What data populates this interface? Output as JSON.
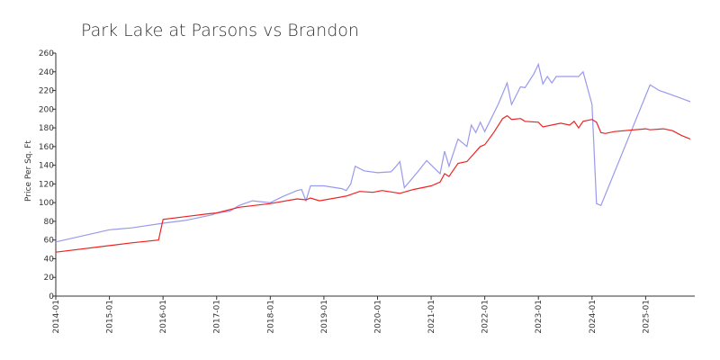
{
  "chart_data": {
    "type": "line",
    "title": "Park Lake at Parsons vs Brandon",
    "y_label": "Price Per Sq. Ft",
    "xlim": [
      "2014-01",
      "2025-12"
    ],
    "xticks": [
      "2014-01",
      "2015-01",
      "2016-01",
      "2017-01",
      "2018-01",
      "2019-01",
      "2020-01",
      "2021-01",
      "2022-01",
      "2023-01",
      "2024-01",
      "2025-01"
    ],
    "ylim": [
      0,
      260
    ],
    "yticks": [
      0,
      20,
      40,
      60,
      80,
      100,
      120,
      140,
      160,
      180,
      200,
      220,
      240,
      260
    ],
    "series": [
      {
        "color": "#9999ee",
        "x": [
          "2014-01",
          "2015-01",
          "2015-06",
          "2016-01",
          "2016-06",
          "2016-12",
          "2017-01",
          "2017-04",
          "2017-06",
          "2017-09",
          "2018-01",
          "2018-04",
          "2018-07",
          "2018-08",
          "2018-09",
          "2018-10",
          "2019-01",
          "2019-05",
          "2019-06",
          "2019-07",
          "2019-08",
          "2019-10",
          "2020-01",
          "2020-04",
          "2020-05",
          "2020-06",
          "2020-07",
          "2020-10",
          "2020-12",
          "2021-03",
          "2021-04",
          "2021-05",
          "2021-07",
          "2021-09",
          "2021-10",
          "2021-11",
          "2021-12",
          "2022-01",
          "2022-04",
          "2022-06",
          "2022-07",
          "2022-09",
          "2022-10",
          "2022-12",
          "2023-01",
          "2023-02",
          "2023-03",
          "2023-04",
          "2023-05",
          "2023-10",
          "2023-11",
          "2024-01",
          "2024-02",
          "2024-03",
          "2025-02",
          "2025-04",
          "2025-07",
          "2025-11"
        ],
        "values": [
          58,
          71,
          73,
          78,
          81,
          87,
          89,
          91,
          97,
          102,
          100,
          107,
          113,
          114,
          102,
          118,
          118,
          115,
          113,
          120,
          139,
          134,
          132,
          133,
          138,
          144,
          116,
          133,
          145,
          131,
          155,
          139,
          168,
          160,
          183,
          175,
          186,
          176,
          205,
          228,
          205,
          224,
          223,
          238,
          248,
          227,
          235,
          228,
          235,
          235,
          240,
          205,
          99,
          97,
          226,
          220,
          215,
          208
        ]
      },
      {
        "color": "#ee2222",
        "x": [
          "2014-01",
          "2015-01",
          "2015-06",
          "2015-12",
          "2016-01",
          "2016-06",
          "2016-11",
          "2017-01",
          "2017-06",
          "2018-01",
          "2018-07",
          "2018-09",
          "2018-10",
          "2018-12",
          "2019-06",
          "2019-09",
          "2019-12",
          "2020-02",
          "2020-06",
          "2020-09",
          "2021-01",
          "2021-03",
          "2021-04",
          "2021-05",
          "2021-07",
          "2021-09",
          "2021-12",
          "2022-01",
          "2022-03",
          "2022-05",
          "2022-06",
          "2022-07",
          "2022-09",
          "2022-10",
          "2023-01",
          "2023-02",
          "2023-06",
          "2023-08",
          "2023-09",
          "2023-10",
          "2023-11",
          "2024-01",
          "2024-02",
          "2024-03",
          "2024-04",
          "2024-06",
          "2025-01",
          "2025-02",
          "2025-05",
          "2025-07",
          "2025-09",
          "2025-11"
        ],
        "values": [
          47,
          54,
          57,
          60,
          82,
          85,
          88,
          89,
          95,
          99,
          104,
          103,
          105,
          102,
          107,
          112,
          111,
          113,
          110,
          114,
          118,
          122,
          131,
          128,
          142,
          144,
          160,
          162,
          175,
          190,
          193,
          189,
          190,
          187,
          186,
          181,
          185,
          183,
          187,
          180,
          187,
          189,
          186,
          175,
          174,
          176,
          179,
          178,
          179,
          177,
          172,
          168
        ]
      }
    ]
  }
}
